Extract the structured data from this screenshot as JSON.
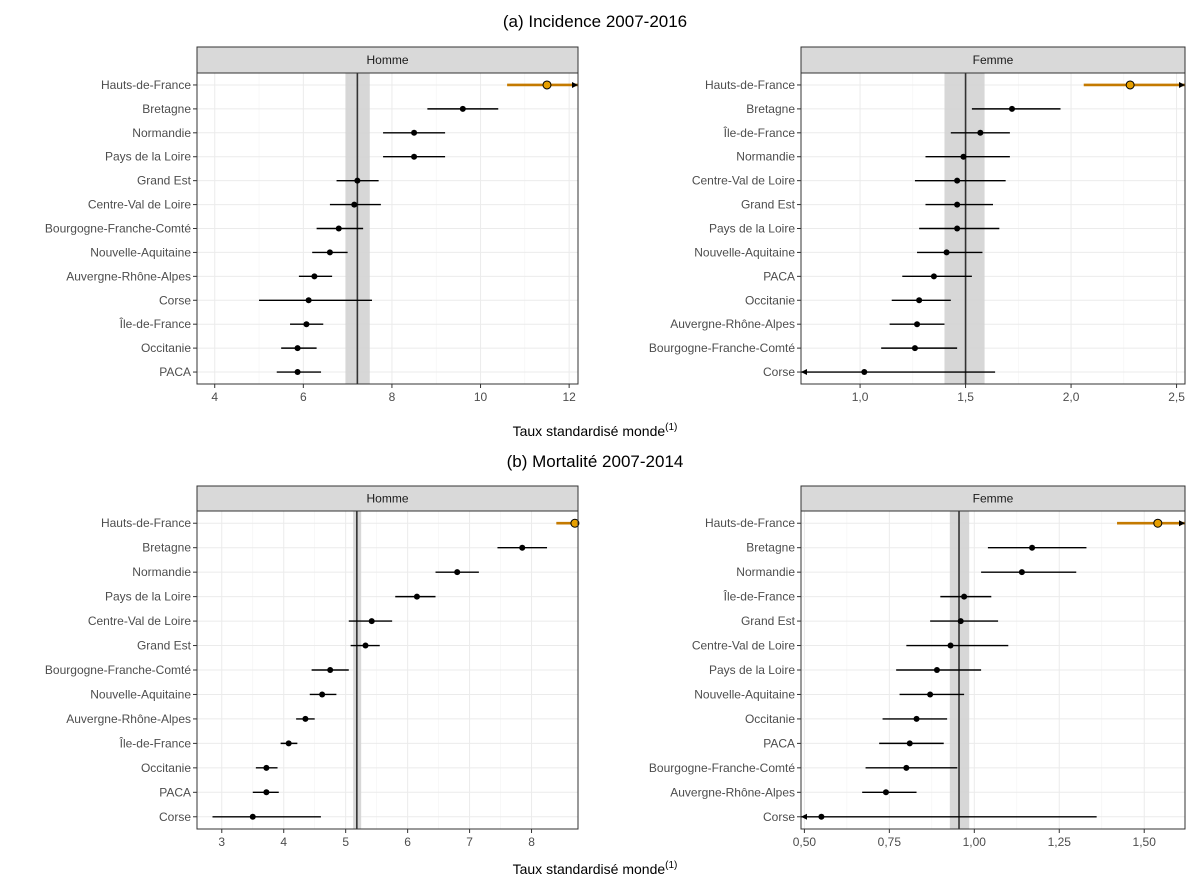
{
  "xlabel_main": "Taux standardisé monde",
  "xlabel_sup": "(1)",
  "colors": {
    "highlight": "#E69F00",
    "highlight_line": "#C47A00",
    "strip": "#d9d9d9",
    "band": "#d3d3d3",
    "grid": "#ebebeb"
  },
  "chart_data": [
    {
      "type": "scatter",
      "section": "a",
      "section_title": "(a) Incidence 2007-2016",
      "panel": "Homme",
      "xlim": [
        3.6,
        12.2
      ],
      "ticks": [
        4,
        6,
        8,
        10,
        12
      ],
      "tick_labels": [
        "4",
        "6",
        "8",
        "10",
        "12"
      ],
      "ref_value": 7.22,
      "ref_band": [
        6.95,
        7.5
      ],
      "highlight": "Hauts-de-France",
      "categories": [
        "Hauts-de-France",
        "Bretagne",
        "Normandie",
        "Pays de la Loire",
        "Grand Est",
        "Centre-Val de Loire",
        "Bourgogne-Franche-Comté",
        "Nouvelle-Aquitaine",
        "Auvergne-Rhône-Alpes",
        "Corse",
        "Île-de-France",
        "Occitanie",
        "PACA"
      ],
      "values": [
        11.5,
        9.6,
        8.5,
        8.5,
        7.22,
        7.15,
        6.8,
        6.6,
        6.25,
        6.12,
        6.07,
        5.87,
        5.87
      ],
      "lower": [
        10.6,
        8.8,
        7.8,
        7.8,
        6.75,
        6.6,
        6.3,
        6.2,
        5.9,
        5.0,
        5.7,
        5.5,
        5.4
      ],
      "upper": [
        12.2,
        10.4,
        9.2,
        9.2,
        7.7,
        7.75,
        7.35,
        7.0,
        6.65,
        7.55,
        6.45,
        6.3,
        6.4
      ]
    },
    {
      "type": "scatter",
      "section": "a",
      "section_title": "(a) Incidence 2007-2016",
      "panel": "Femme",
      "xlim": [
        0.72,
        2.54
      ],
      "ticks": [
        1.0,
        1.5,
        2.0,
        2.5
      ],
      "tick_labels": [
        "1,0",
        "1,5",
        "2,0",
        "2,5"
      ],
      "ref_value": 1.5,
      "ref_band": [
        1.4,
        1.59
      ],
      "highlight": "Hauts-de-France",
      "categories": [
        "Hauts-de-France",
        "Bretagne",
        "Île-de-France",
        "Normandie",
        "Centre-Val de Loire",
        "Grand Est",
        "Pays de la Loire",
        "Nouvelle-Aquitaine",
        "PACA",
        "Occitanie",
        "Auvergne-Rhône-Alpes",
        "Bourgogne-Franche-Comté",
        "Corse"
      ],
      "values": [
        2.28,
        1.72,
        1.57,
        1.49,
        1.46,
        1.46,
        1.46,
        1.41,
        1.35,
        1.28,
        1.27,
        1.26,
        1.02
      ],
      "lower": [
        2.06,
        1.53,
        1.43,
        1.31,
        1.26,
        1.31,
        1.28,
        1.27,
        1.2,
        1.15,
        1.14,
        1.1,
        0.72
      ],
      "upper": [
        2.54,
        1.95,
        1.71,
        1.71,
        1.69,
        1.63,
        1.66,
        1.58,
        1.53,
        1.43,
        1.4,
        1.46,
        1.64
      ]
    },
    {
      "type": "scatter",
      "section": "b",
      "section_title": "(b) Mortalité 2007-2014",
      "panel": "Homme",
      "xlim": [
        2.6,
        8.75
      ],
      "ticks": [
        3,
        4,
        5,
        6,
        7,
        8
      ],
      "tick_labels": [
        "3",
        "4",
        "5",
        "6",
        "7",
        "8"
      ],
      "ref_value": 5.18,
      "ref_band": [
        5.12,
        5.25
      ],
      "highlight": "Hauts-de-France",
      "categories": [
        "Hauts-de-France",
        "Bretagne",
        "Normandie",
        "Pays de la Loire",
        "Centre-Val de Loire",
        "Grand Est",
        "Bourgogne-Franche-Comté",
        "Nouvelle-Aquitaine",
        "Auvergne-Rhône-Alpes",
        "Île-de-France",
        "Occitanie",
        "PACA",
        "Corse"
      ],
      "values": [
        8.7,
        7.85,
        6.8,
        6.15,
        5.42,
        5.32,
        4.75,
        4.62,
        4.35,
        4.08,
        3.72,
        3.72,
        3.5
      ],
      "lower": [
        8.4,
        7.45,
        6.45,
        5.8,
        5.05,
        5.08,
        4.45,
        4.42,
        4.2,
        3.95,
        3.55,
        3.5,
        2.85
      ],
      "upper": [
        8.75,
        8.25,
        7.15,
        6.45,
        5.75,
        5.55,
        5.05,
        4.85,
        4.5,
        4.22,
        3.9,
        3.92,
        4.6
      ]
    },
    {
      "type": "scatter",
      "section": "b",
      "section_title": "(b) Mortalité 2007-2014",
      "panel": "Femme",
      "xlim": [
        0.49,
        1.62
      ],
      "ticks": [
        0.5,
        0.75,
        1.0,
        1.25,
        1.5
      ],
      "tick_labels": [
        "0,50",
        "0,75",
        "1,00",
        "1,25",
        "1,50"
      ],
      "ref_value": 0.955,
      "ref_band": [
        0.928,
        0.985
      ],
      "highlight": "Hauts-de-France",
      "categories": [
        "Hauts-de-France",
        "Bretagne",
        "Normandie",
        "Île-de-France",
        "Grand Est",
        "Centre-Val de Loire",
        "Pays de la Loire",
        "Nouvelle-Aquitaine",
        "Occitanie",
        "PACA",
        "Bourgogne-Franche-Comté",
        "Auvergne-Rhône-Alpes",
        "Corse"
      ],
      "values": [
        1.54,
        1.17,
        1.14,
        0.97,
        0.96,
        0.93,
        0.89,
        0.87,
        0.83,
        0.81,
        0.8,
        0.74,
        0.55
      ],
      "lower": [
        1.42,
        1.04,
        1.02,
        0.9,
        0.87,
        0.8,
        0.77,
        0.78,
        0.73,
        0.72,
        0.68,
        0.67,
        0.49
      ],
      "upper": [
        1.62,
        1.33,
        1.3,
        1.05,
        1.07,
        1.1,
        1.02,
        0.97,
        0.92,
        0.91,
        0.95,
        0.83,
        1.36
      ]
    }
  ]
}
